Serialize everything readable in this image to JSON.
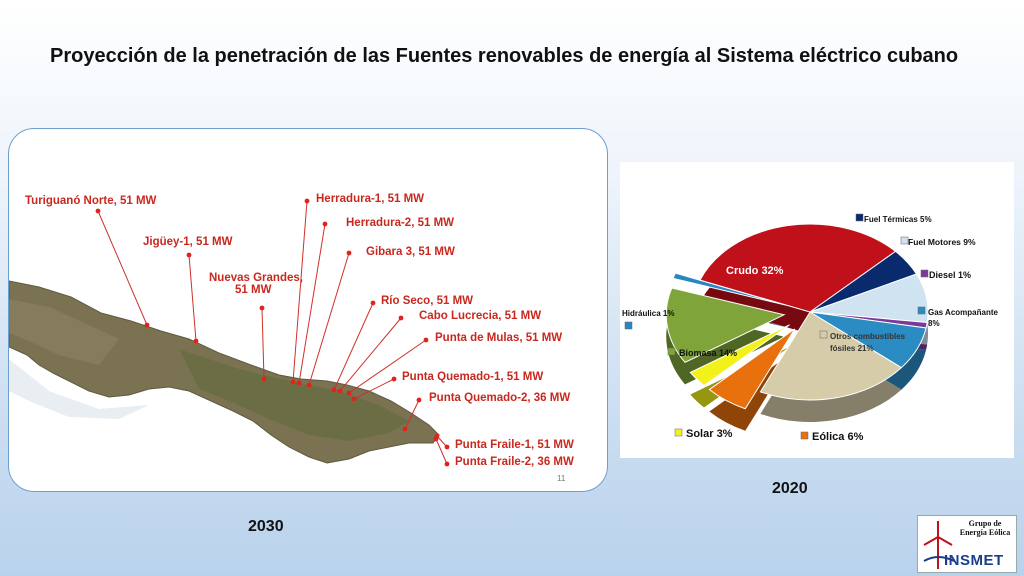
{
  "slide_title": "Proyección de la penetración de las Fuentes renovables de energía al Sistema eléctrico cubano",
  "map": {
    "year": "2030",
    "page_number": "11",
    "labels": [
      "Turiguanó Norte, 51 MW",
      "Jigüey-1, 51 MW",
      "Nuevas Grandes,",
      "51 MW",
      "Herradura-1, 51 MW",
      "Herradura-2,  51 MW",
      "Gibara 3,  51 MW",
      "Río Seco, 51 MW",
      "Cabo Lucrecia, 51 MW",
      "Punta de Mulas, 51 MW",
      "Punta Quemado-1, 51 MW",
      "Punta Quemado-2, 36 MW",
      "Punta Fraile-1, 51 MW",
      "Punta Fraile-2, 36 MW"
    ]
  },
  "chart": {
    "year": "2020",
    "slice_labels": [
      "Crudo 32%",
      "Fuel Térmicas 5%",
      "Fuel Motores 9%",
      "Diesel 1%",
      "Gas Acompañante",
      "8%",
      "Otros combustibles",
      "fósiles 21%",
      "Eólica 6%",
      "Solar 3%",
      "Biomasa 14%",
      "Hidráulica 1%"
    ]
  },
  "chart_data": {
    "type": "pie",
    "title": "",
    "categories": [
      "Crudo",
      "Fuel Térmicas",
      "Fuel Motores",
      "Diesel",
      "Gas Acompañante",
      "Otros combustibles fósiles",
      "Eólica",
      "Solar",
      "Biomasa",
      "Hidráulica"
    ],
    "values": [
      32,
      5,
      9,
      1,
      8,
      21,
      6,
      3,
      14,
      1
    ],
    "exploded": [
      "Eólica",
      "Solar",
      "Biomasa",
      "Hidráulica"
    ],
    "colors": [
      "#c0101a",
      "#0a2a6e",
      "#cfe3f0",
      "#7a3a9a",
      "#2b8cc4",
      "#d6ccaa",
      "#e8700d",
      "#f2f21a",
      "#7fa43a",
      "#2a86c0"
    ]
  },
  "logo": {
    "text": "Grupo de Energía Eólica",
    "name": "INSMET"
  }
}
